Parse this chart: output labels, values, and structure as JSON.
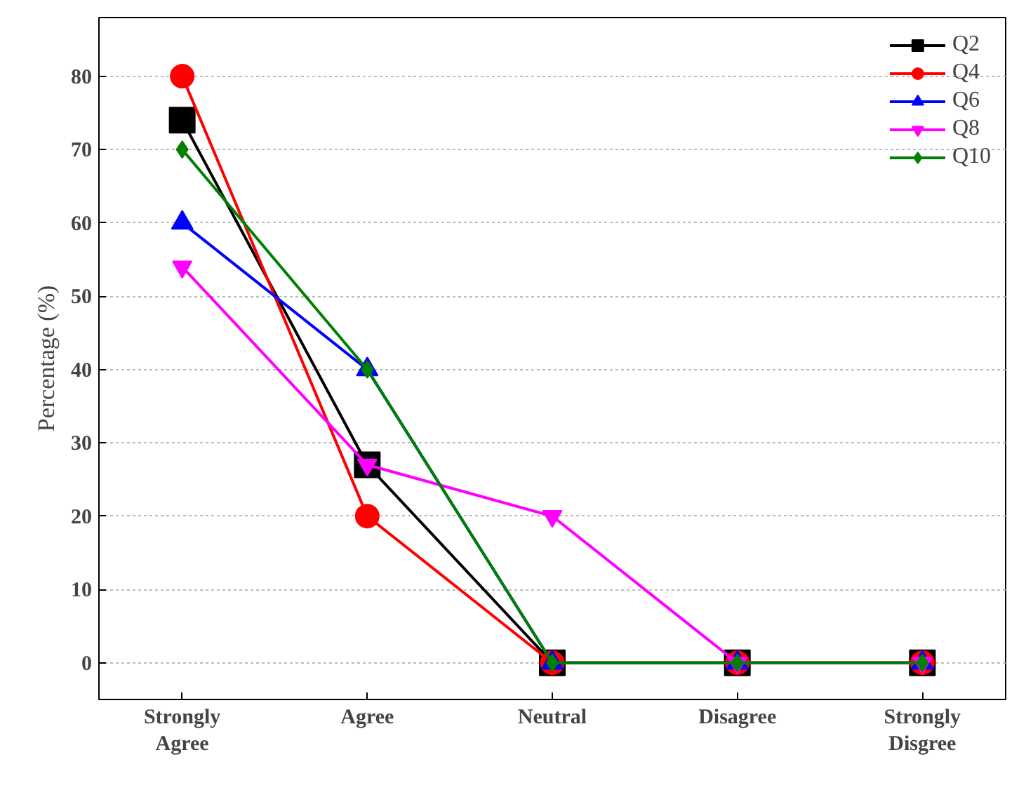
{
  "chart_data": {
    "type": "line",
    "ylabel": "Percentage (%)",
    "categories": [
      "Strongly\nAgree",
      "Agree",
      "Neutral",
      "Disagree",
      "Strongly\nDisgree"
    ],
    "series": [
      {
        "name": "Q2",
        "color": "#000000",
        "marker": "square",
        "values": [
          74,
          27,
          0,
          0,
          0
        ]
      },
      {
        "name": "Q4",
        "color": "#ff0000",
        "marker": "circle",
        "values": [
          80,
          20,
          0,
          0,
          0
        ]
      },
      {
        "name": "Q6",
        "color": "#0000ff",
        "marker": "triangle",
        "values": [
          60,
          40,
          0,
          0,
          0
        ]
      },
      {
        "name": "Q8",
        "color": "#ff00ff",
        "marker": "triangle_down",
        "values": [
          54,
          27,
          20,
          0,
          0
        ]
      },
      {
        "name": "Q10",
        "color": "#008000",
        "marker": "diamond",
        "values": [
          70,
          40,
          0,
          0,
          0
        ]
      }
    ],
    "ylim": [
      -5,
      88
    ],
    "yticks": [
      0,
      10,
      20,
      30,
      40,
      50,
      60,
      70,
      80
    ],
    "grid": "y",
    "legend": "top right",
    "line_style": "solid"
  }
}
